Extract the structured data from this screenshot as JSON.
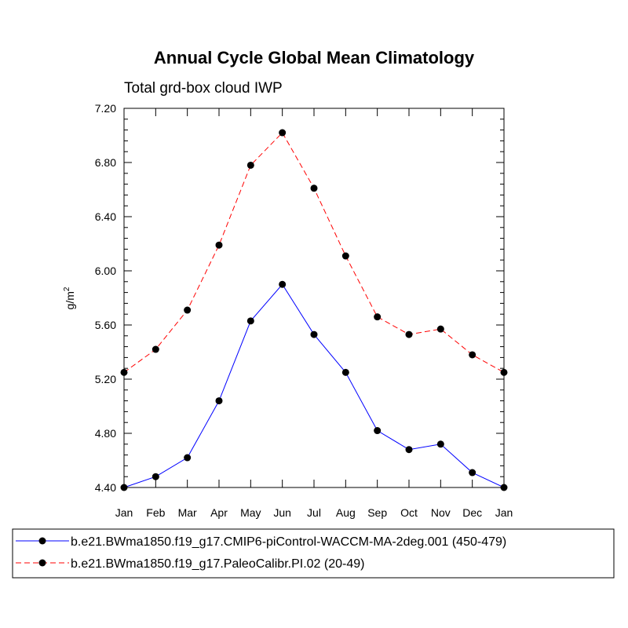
{
  "chart_data": {
    "type": "line",
    "title": "Annual Cycle Global Mean Climatology",
    "subtitle": "Total grd-box cloud IWP",
    "ylabel": "g/m",
    "ylabel_sup": "2",
    "xlabel": "",
    "categories": [
      "Jan",
      "Feb",
      "Mar",
      "Apr",
      "May",
      "Jun",
      "Jul",
      "Aug",
      "Sep",
      "Oct",
      "Nov",
      "Dec",
      "Jan"
    ],
    "ylim": [
      4.4,
      7.2
    ],
    "yticks": [
      "4.40",
      "4.80",
      "5.20",
      "5.60",
      "6.00",
      "6.40",
      "6.80",
      "7.20"
    ],
    "grid": false,
    "legend_position": "bottom",
    "series": [
      {
        "name": "b.e21.BWma1850.f19_g17.CMIP6-piControl-WACCM-MA-2deg.001 (450-479)",
        "color": "#0000ff",
        "style": "solid",
        "values": [
          4.4,
          4.48,
          4.62,
          5.04,
          5.63,
          5.9,
          5.53,
          5.25,
          4.82,
          4.68,
          4.72,
          4.51,
          4.4
        ]
      },
      {
        "name": "b.e21.BWma1850.f19_g17.PaleoCalibr.PI.02 (20-49)",
        "color": "#ff0000",
        "style": "dashed",
        "values": [
          5.25,
          5.42,
          5.71,
          6.19,
          6.78,
          7.02,
          6.61,
          6.11,
          5.66,
          5.53,
          5.57,
          5.38,
          5.25
        ]
      }
    ]
  }
}
